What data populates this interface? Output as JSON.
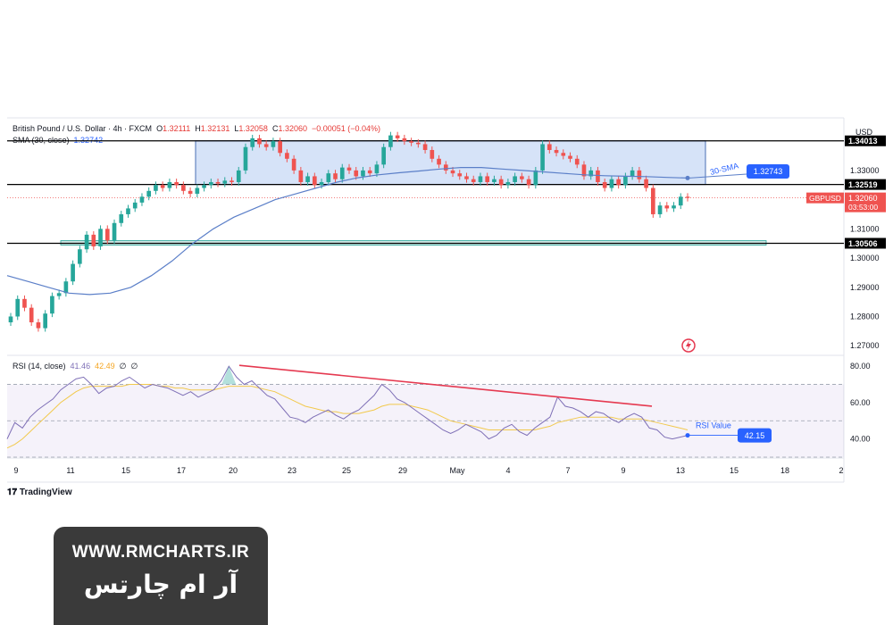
{
  "header": {
    "symbol": "British Pound / U.S. Dollar · 4h · FXCM",
    "o_label": "O",
    "o_value": "1.32111",
    "h_label": "H",
    "h_value": "1.32131",
    "l_label": "L",
    "l_value": "1.32058",
    "c_label": "C",
    "c_value": "1.32060",
    "change": "−0.00051 (−0.04%)",
    "sma_label": "SMA (30, close)",
    "sma_value": "1.32742",
    "currency": "USD"
  },
  "rsi_legend": {
    "label": "RSI (14, close)",
    "v1": "41.46",
    "v2": "42.49",
    "v3": "∅",
    "v4": "∅"
  },
  "annotations": {
    "sma_text": "30-SMA",
    "sma_tag": "1.32743",
    "rsi_text": "RSI Value",
    "rsi_tag": "42.15",
    "symbol_tag": "GBPUSD",
    "price_tag": "1.32060",
    "countdown": "03:53:00"
  },
  "branding": {
    "tradingview": "TradingView",
    "site": "WWW.RMCHARTS.IR",
    "site_fa": "آر ام چارتس"
  },
  "colors": {
    "up": "#26a69a",
    "down": "#ef5350",
    "sma": "#5b7fc8",
    "rsi": "#7e6fb6",
    "rsi_ma": "#f2c94c",
    "box": "#c8d9f5",
    "trend": "#e53950"
  },
  "chart_data": [
    {
      "type": "candlestick",
      "title": "British Pound / U.S. Dollar · 4h · FXCM",
      "ylim": [
        1.267,
        1.348
      ],
      "y_ticks": [
        "1.27000",
        "1.28000",
        "1.29000",
        "1.30000",
        "1.31000",
        "1.33000"
      ],
      "x_ticks": [
        "9",
        "11",
        "15",
        "17",
        "20",
        "23",
        "25",
        "29",
        "May",
        "4",
        "7",
        "9",
        "13",
        "15",
        "18",
        "2"
      ],
      "levels": [
        {
          "label": "1.34013",
          "value": 1.34013
        },
        {
          "label": "1.32519",
          "value": 1.32519
        },
        {
          "label": "1.30506",
          "value": 1.30506
        }
      ],
      "current_price": 1.3206,
      "close": [
        1.28,
        1.286,
        1.283,
        1.278,
        1.276,
        1.281,
        1.287,
        1.288,
        1.292,
        1.298,
        1.303,
        1.308,
        1.304,
        1.31,
        1.306,
        1.312,
        1.315,
        1.317,
        1.319,
        1.321,
        1.323,
        1.325,
        1.324,
        1.326,
        1.325,
        1.323,
        1.322,
        1.324,
        1.325,
        1.326,
        1.3255,
        1.3265,
        1.326,
        1.33,
        1.338,
        1.341,
        1.339,
        1.338,
        1.34,
        1.336,
        1.334,
        1.33,
        1.326,
        1.328,
        1.325,
        1.326,
        1.329,
        1.327,
        1.331,
        1.33,
        1.328,
        1.33,
        1.329,
        1.332,
        1.338,
        1.342,
        1.341,
        1.34,
        1.3395,
        1.339,
        1.337,
        1.334,
        1.332,
        1.33,
        1.329,
        1.328,
        1.327,
        1.326,
        1.328,
        1.326,
        1.327,
        1.325,
        1.326,
        1.328,
        1.327,
        1.325,
        1.33,
        1.339,
        1.337,
        1.336,
        1.335,
        1.334,
        1.332,
        1.328,
        1.33,
        1.326,
        1.324,
        1.327,
        1.325,
        1.328,
        1.33,
        1.327,
        1.324,
        1.315,
        1.318,
        1.317,
        1.318,
        1.321,
        1.3206
      ],
      "sma": [
        1.294,
        1.292,
        1.29,
        1.288,
        1.2875,
        1.288,
        1.29,
        1.294,
        1.299,
        1.305,
        1.31,
        1.314,
        1.317,
        1.32,
        1.322,
        1.324,
        1.326,
        1.3275,
        1.3285,
        1.3292,
        1.3298,
        1.3305,
        1.331,
        1.331,
        1.3305,
        1.33,
        1.3295,
        1.329,
        1.3285,
        1.3282,
        1.328,
        1.3279,
        1.3276,
        1.3274
      ]
    },
    {
      "type": "line",
      "title": "RSI (14, close)",
      "ylim": [
        30,
        85
      ],
      "y_ticks": [
        "40.00",
        "60.00",
        "80.00"
      ],
      "bands": [
        30,
        50,
        70
      ],
      "series": [
        {
          "name": "RSI",
          "values": [
            40,
            49,
            46,
            52,
            56,
            59,
            62,
            67,
            70,
            73,
            74,
            70,
            65,
            68,
            69,
            72,
            74,
            71,
            68,
            70,
            69,
            68,
            66,
            64,
            66,
            63,
            65,
            67,
            72,
            80,
            74,
            70,
            72,
            68,
            64,
            62,
            57,
            52,
            51,
            49,
            52,
            54,
            56,
            53,
            51,
            54,
            56,
            60,
            64,
            70,
            67,
            62,
            60,
            57,
            54,
            51,
            48,
            45,
            43,
            45,
            48,
            46,
            44,
            40,
            42,
            46,
            48,
            44,
            42,
            46,
            49,
            52,
            63,
            58,
            57,
            55,
            52,
            55,
            54,
            51,
            49,
            52,
            54,
            52,
            46,
            45,
            41,
            40,
            41,
            42
          ]
        },
        {
          "name": "RSI-based MA",
          "values": [
            35,
            37,
            40,
            44,
            48,
            52,
            56,
            60,
            63,
            66,
            68,
            69,
            69,
            69,
            69,
            69,
            70,
            70,
            70,
            70,
            69,
            69,
            68,
            68,
            67,
            67,
            67,
            67,
            68,
            69,
            69,
            69,
            69,
            68,
            67,
            66,
            64,
            62,
            60,
            58,
            57,
            56,
            55,
            55,
            54,
            54,
            54,
            55,
            56,
            58,
            59,
            59,
            59,
            58,
            57,
            56,
            54,
            52,
            50,
            49,
            48,
            47,
            46,
            45,
            45,
            45,
            45,
            45,
            45,
            45,
            46,
            47,
            49,
            50,
            51,
            52,
            52,
            52,
            52,
            52,
            51,
            51,
            51,
            51,
            50,
            49,
            48,
            47,
            46,
            45
          ]
        }
      ]
    }
  ]
}
